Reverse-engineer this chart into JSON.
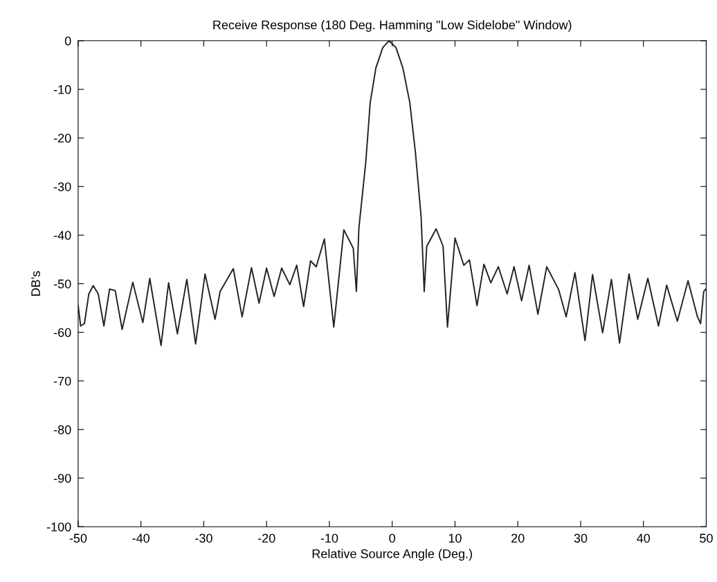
{
  "chart_data": {
    "type": "line",
    "title": "Receive Response (180 Deg. Hamming \"Low Sidelobe\" Window)",
    "xlabel": "Relative Source Angle (Deg.)",
    "ylabel": "DB's",
    "xlim": [
      -50,
      50
    ],
    "ylim": [
      -100,
      0
    ],
    "xticks": [
      -50,
      -40,
      -30,
      -20,
      -10,
      0,
      10,
      20,
      30,
      40,
      50
    ],
    "yticks": [
      -100,
      -90,
      -80,
      -70,
      -60,
      -50,
      -40,
      -30,
      -20,
      -10,
      0
    ],
    "grid": false,
    "legend": false,
    "marker": "none",
    "line_style": "solid",
    "series": [
      {
        "color": "#222222",
        "x": [
          -50,
          -49.6,
          -49.0,
          -48.3,
          -47.6,
          -46.8,
          -45.9,
          -45.0,
          -44.1,
          -43.0,
          -41.3,
          -39.7,
          -38.6,
          -36.8,
          -35.6,
          -34.2,
          -32.7,
          -31.3,
          -29.8,
          -28.2,
          -27.4,
          -25.3,
          -23.9,
          -22.4,
          -21.2,
          -20.0,
          -18.8,
          -17.6,
          -16.3,
          -15.2,
          -14.1,
          -13.0,
          -12.1,
          -10.8,
          -9.3,
          -7.7,
          -6.2,
          -5.7,
          -5.3,
          -4.2,
          -3.5,
          -2.6,
          -1.5,
          -0.5,
          0.6,
          1.7,
          2.8,
          3.7,
          4.6,
          5.1,
          5.5,
          7.0,
          8.1,
          8.8,
          10.0,
          11.4,
          12.3,
          13.5,
          14.6,
          15.7,
          16.9,
          18.3,
          19.4,
          20.6,
          21.8,
          23.2,
          24.6,
          26.5,
          27.7,
          29.1,
          30.7,
          31.9,
          33.5,
          34.9,
          36.2,
          37.7,
          39.1,
          40.7,
          42.4,
          43.7,
          45.4,
          47.1,
          48.6,
          49.1,
          49.6,
          50
        ],
        "values": [
          -54.5,
          -58.7,
          -58.2,
          -52.1,
          -50.4,
          -52.1,
          -58.7,
          -51.1,
          -51.4,
          -59.4,
          -49.7,
          -58.0,
          -48.9,
          -62.7,
          -49.8,
          -60.3,
          -49.1,
          -62.4,
          -48.0,
          -57.3,
          -51.6,
          -46.9,
          -56.8,
          -46.7,
          -54.0,
          -46.8,
          -52.6,
          -46.8,
          -50.2,
          -46.2,
          -54.7,
          -45.3,
          -46.5,
          -40.8,
          -58.9,
          -38.9,
          -42.7,
          -51.6,
          -38.5,
          -24.9,
          -12.7,
          -5.6,
          -1.4,
          0,
          -1.4,
          -5.6,
          -12.7,
          -23.0,
          -36.2,
          -51.6,
          -42.3,
          -38.7,
          -42.3,
          -58.9,
          -40.6,
          -46.2,
          -45.1,
          -54.5,
          -46.0,
          -49.8,
          -46.5,
          -52.1,
          -46.5,
          -53.5,
          -46.2,
          -56.3,
          -46.5,
          -51.2,
          -56.8,
          -47.7,
          -61.7,
          -48.1,
          -60.1,
          -49.1,
          -62.2,
          -48.0,
          -57.3,
          -48.9,
          -58.7,
          -50.3,
          -57.7,
          -49.4,
          -56.8,
          -58.2,
          -51.6,
          -51.0
        ]
      }
    ]
  }
}
